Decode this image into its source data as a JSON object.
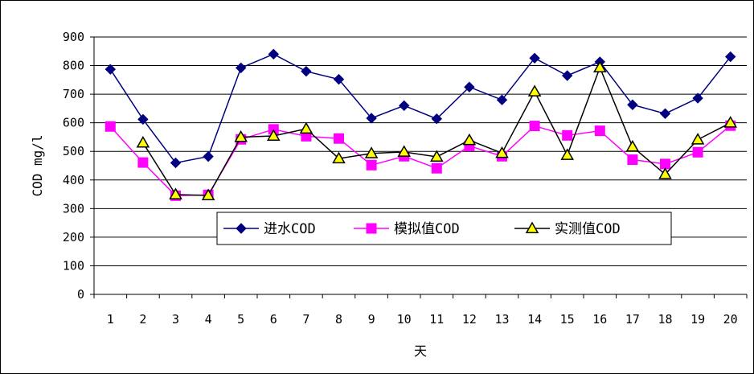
{
  "chart_data": {
    "type": "line",
    "xlabel": "天",
    "ylabel": "COD mg/l",
    "ylim": [
      0,
      900
    ],
    "yticks": [
      0,
      100,
      200,
      300,
      400,
      500,
      600,
      700,
      800,
      900
    ],
    "grid": "horizontal",
    "legend_placement": "inside-bottom-center",
    "categories": [
      "1",
      "2",
      "3",
      "4",
      "5",
      "6",
      "7",
      "8",
      "9",
      "10",
      "11",
      "12",
      "13",
      "14",
      "15",
      "16",
      "17",
      "18",
      "19",
      "20"
    ],
    "series": [
      {
        "name": "进水COD",
        "color": "#000080",
        "marker": "diamond",
        "values": [
          787,
          612,
          460,
          482,
          792,
          840,
          780,
          752,
          616,
          660,
          614,
          725,
          680,
          826,
          765,
          813,
          663,
          632,
          686,
          831
        ]
      },
      {
        "name": "模拟值COD",
        "color": "#FF00FF",
        "marker": "square",
        "values": [
          587,
          461,
          345,
          348,
          542,
          577,
          553,
          545,
          452,
          483,
          441,
          519,
          483,
          589,
          556,
          572,
          471,
          456,
          497,
          590
        ]
      },
      {
        "name": "实测值COD",
        "color": "#000000",
        "marker": "triangle",
        "marker_fill": "#FFFF00",
        "values": [
          null,
          530,
          349,
          346,
          550,
          554,
          579,
          475,
          493,
          498,
          481,
          539,
          494,
          709,
          487,
          793,
          516,
          420,
          541,
          600
        ]
      }
    ]
  }
}
